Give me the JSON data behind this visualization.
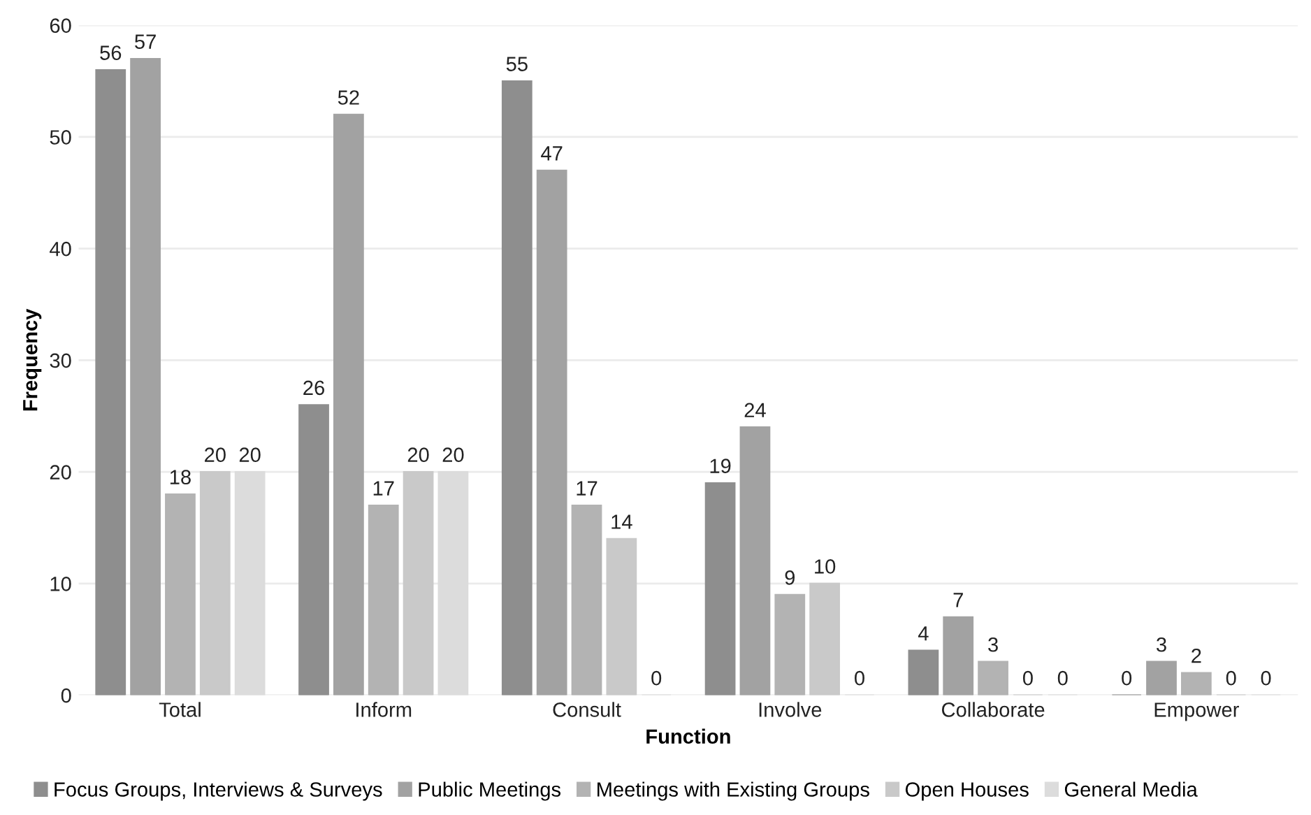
{
  "chart_data": {
    "type": "bar",
    "xlabel": "Function",
    "ylabel": "Frequency",
    "categories": [
      "Total",
      "Inform",
      "Consult",
      "Involve",
      "Collaborate",
      "Empower"
    ],
    "series": [
      {
        "name": "Focus Groups, Interviews & Surveys",
        "color": "#8e8e8e",
        "values": [
          56,
          26,
          55,
          19,
          4,
          0
        ]
      },
      {
        "name": "Public Meetings",
        "color": "#a2a2a2",
        "values": [
          57,
          52,
          47,
          24,
          7,
          3
        ]
      },
      {
        "name": "Meetings with Existing Groups",
        "color": "#b3b3b3",
        "values": [
          18,
          17,
          17,
          9,
          3,
          2
        ]
      },
      {
        "name": "Open Houses",
        "color": "#c9c9c9",
        "values": [
          20,
          20,
          14,
          10,
          0,
          0
        ]
      },
      {
        "name": "General Media",
        "color": "#dcdcdc",
        "values": [
          20,
          20,
          0,
          0,
          0,
          0
        ]
      }
    ],
    "ylim": [
      0,
      60
    ],
    "yticks": [
      0,
      10,
      20,
      30,
      40,
      50,
      60
    ],
    "grid": "y",
    "legend": "bottom",
    "data_labels": true
  }
}
